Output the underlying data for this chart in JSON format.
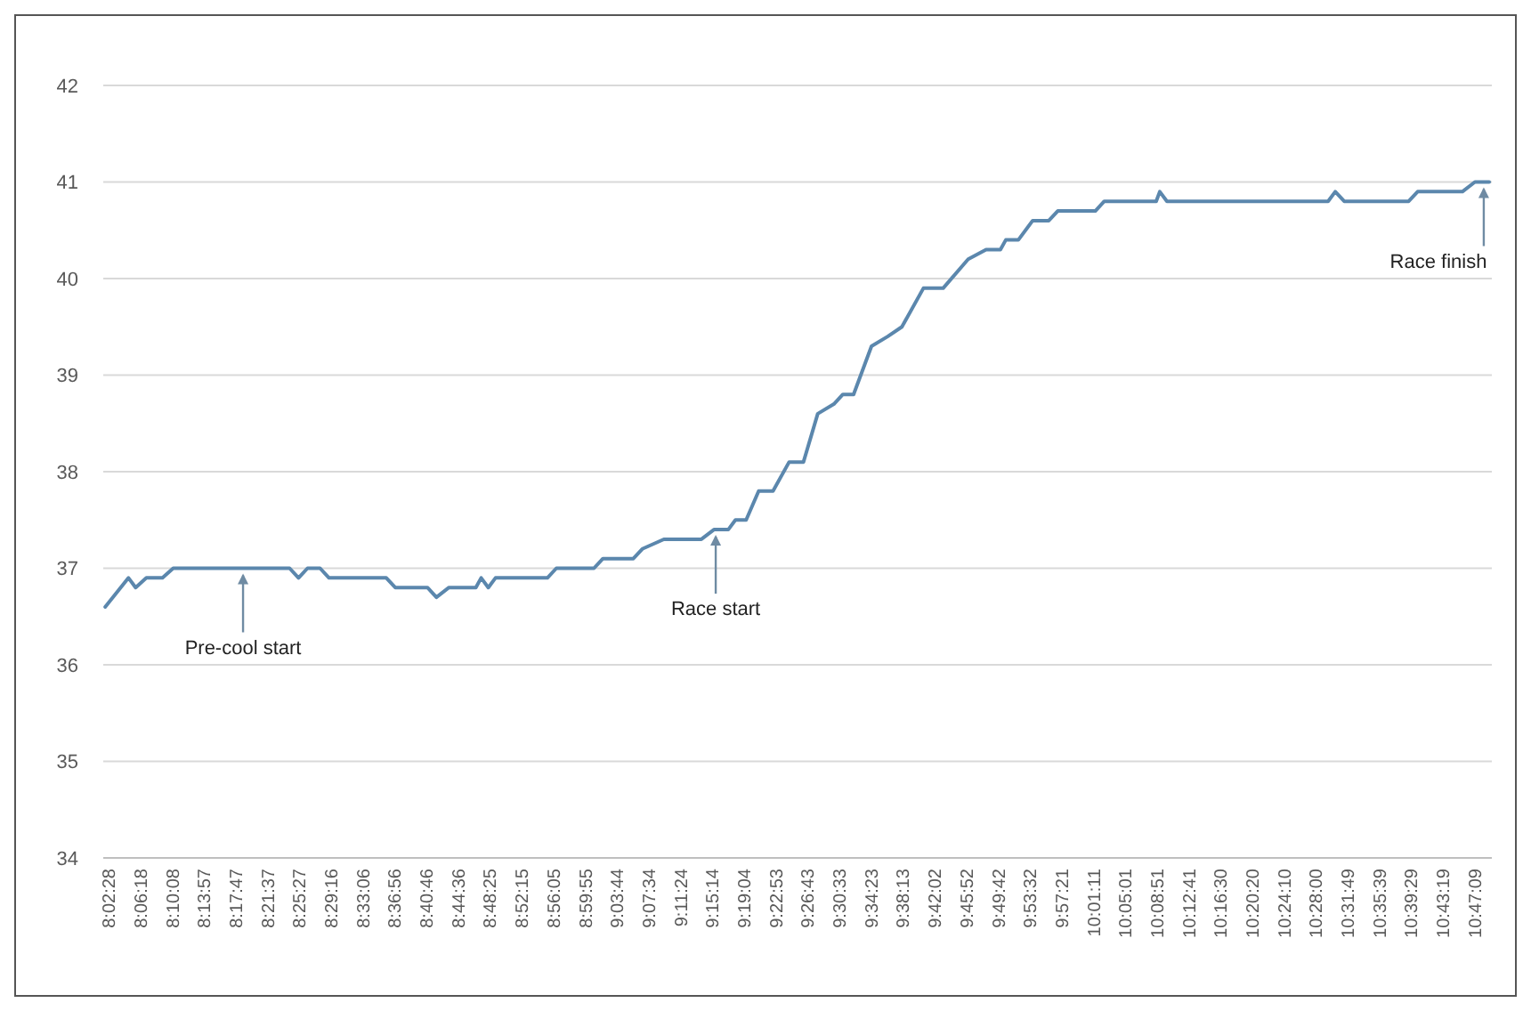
{
  "chart_data": {
    "type": "line",
    "x": [
      8.0339,
      8.0807,
      8.0951,
      8.1166,
      8.149,
      8.1706,
      8.4044,
      8.4224,
      8.4404,
      8.4656,
      8.4836,
      8.5987,
      8.6167,
      8.6814,
      8.6994,
      8.7246,
      8.7786,
      8.7893,
      8.8037,
      8.8181,
      8.9224,
      8.9404,
      9.016,
      9.034,
      9.0951,
      9.1131,
      9.1563,
      9.2318,
      9.257,
      9.2858,
      9.3002,
      9.3217,
      9.3469,
      9.3757,
      9.4081,
      9.4369,
      9.4656,
      9.498,
      9.516,
      9.5376,
      9.5736,
      9.606,
      9.6347,
      9.6779,
      9.7175,
      9.7678,
      9.8038,
      9.8326,
      9.8434,
      9.8686,
      9.8974,
      9.9298,
      9.9478,
      10.0233,
      10.0413,
      10.1456,
      10.1528,
      10.1672,
      10.491,
      10.5054,
      10.5234,
      10.6529,
      10.6709,
      10.7608,
      10.786,
      10.8147
    ],
    "series": [
      {
        "color": "#5b87ad",
        "values": [
          36.6,
          36.9,
          36.8,
          36.9,
          36.9,
          37.0,
          37.0,
          36.9,
          37.0,
          37.0,
          36.9,
          36.9,
          36.8,
          36.8,
          36.7,
          36.8,
          36.8,
          36.9,
          36.8,
          36.9,
          36.9,
          37.0,
          37.0,
          37.1,
          37.1,
          37.2,
          37.3,
          37.3,
          37.4,
          37.4,
          37.5,
          37.5,
          37.8,
          37.8,
          38.1,
          38.1,
          38.6,
          38.7,
          38.8,
          38.8,
          39.3,
          39.4,
          39.5,
          39.9,
          39.9,
          40.2,
          40.3,
          40.3,
          40.4,
          40.4,
          40.6,
          40.6,
          40.7,
          40.7,
          40.8,
          40.8,
          40.9,
          40.8,
          40.8,
          40.9,
          40.8,
          40.8,
          40.9,
          40.9,
          41.0,
          41.0
        ]
      }
    ],
    "xlim": [
      8.03,
      10.82
    ],
    "xticks": [
      {
        "value": 8.0411,
        "label": "8:02:28"
      },
      {
        "value": 8.105,
        "label": "8:06:18"
      },
      {
        "value": 8.1689,
        "label": "8:10:08"
      },
      {
        "value": 8.2325,
        "label": "8:13:57"
      },
      {
        "value": 8.2964,
        "label": "8:17:47"
      },
      {
        "value": 8.3603,
        "label": "8:21:37"
      },
      {
        "value": 8.4242,
        "label": "8:25:27"
      },
      {
        "value": 8.4878,
        "label": "8:29:16"
      },
      {
        "value": 8.5517,
        "label": "8:33:06"
      },
      {
        "value": 8.6156,
        "label": "8:36:56"
      },
      {
        "value": 8.6794,
        "label": "8:40:46"
      },
      {
        "value": 8.7433,
        "label": "8:44:36"
      },
      {
        "value": 8.8069,
        "label": "8:48:25"
      },
      {
        "value": 8.8708,
        "label": "8:52:15"
      },
      {
        "value": 8.9347,
        "label": "8:56:05"
      },
      {
        "value": 8.9986,
        "label": "8:59:55"
      },
      {
        "value": 9.0622,
        "label": "9:03:44"
      },
      {
        "value": 9.1261,
        "label": "9:07:34"
      },
      {
        "value": 9.19,
        "label": "9:11:24"
      },
      {
        "value": 9.2539,
        "label": "9:15:14"
      },
      {
        "value": 9.3178,
        "label": "9:19:04"
      },
      {
        "value": 9.3814,
        "label": "9:22:53"
      },
      {
        "value": 9.4453,
        "label": "9:26:43"
      },
      {
        "value": 9.5092,
        "label": "9:30:33"
      },
      {
        "value": 9.5731,
        "label": "9:34:23"
      },
      {
        "value": 9.6369,
        "label": "9:38:13"
      },
      {
        "value": 9.7006,
        "label": "9:42:02"
      },
      {
        "value": 9.7644,
        "label": "9:45:52"
      },
      {
        "value": 9.8283,
        "label": "9:49:42"
      },
      {
        "value": 9.8922,
        "label": "9:53:32"
      },
      {
        "value": 9.9558,
        "label": "9:57:21"
      },
      {
        "value": 10.0197,
        "label": "10:01:11"
      },
      {
        "value": 10.0836,
        "label": "10:05:01"
      },
      {
        "value": 10.1475,
        "label": "10:08:51"
      },
      {
        "value": 10.2114,
        "label": "10:12:41"
      },
      {
        "value": 10.275,
        "label": "10:16:30"
      },
      {
        "value": 10.3389,
        "label": "10:20:20"
      },
      {
        "value": 10.4028,
        "label": "10:24:10"
      },
      {
        "value": 10.4667,
        "label": "10:28:00"
      },
      {
        "value": 10.5303,
        "label": "10:31:49"
      },
      {
        "value": 10.5942,
        "label": "10:35:39"
      },
      {
        "value": 10.6581,
        "label": "10:39:29"
      },
      {
        "value": 10.7219,
        "label": "10:43:19"
      },
      {
        "value": 10.7858,
        "label": "10:47:09"
      }
    ],
    "ylim": [
      34,
      42
    ],
    "yticks": [
      34,
      35,
      36,
      37,
      38,
      39,
      40,
      41,
      42
    ],
    "grid": "y",
    "annotations": [
      {
        "text": "Pre-cool start",
        "x": 8.3109,
        "y": 37.0
      },
      {
        "text": "Race start",
        "x": 9.2606,
        "y": 37.4
      },
      {
        "text": "Race finish",
        "x": 10.8038,
        "y": 41.0
      }
    ]
  }
}
